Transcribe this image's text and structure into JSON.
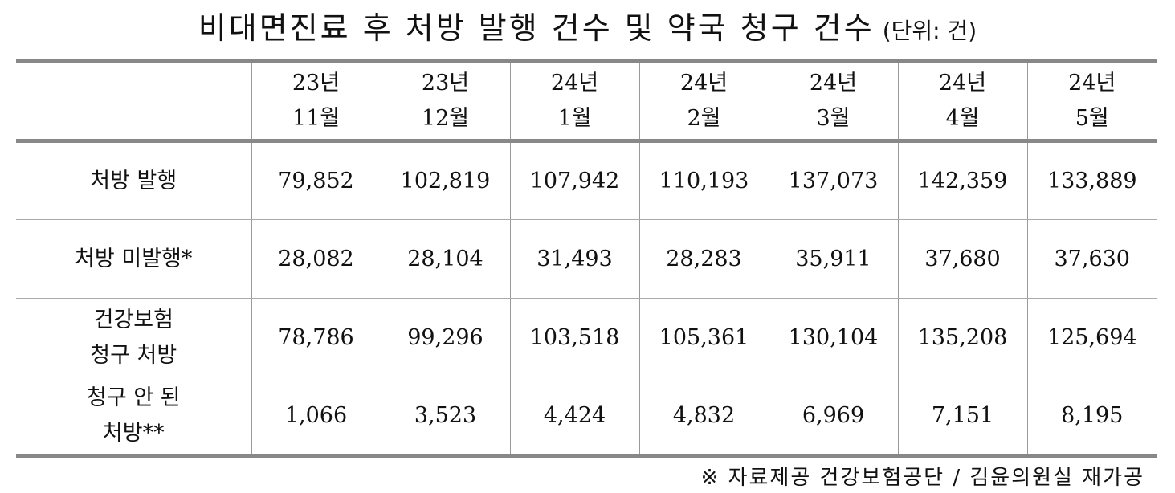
{
  "title": "비대면진료 후 처방 발행 건수 및 약국 청구 건수",
  "unit": "(단위: 건)",
  "table": {
    "header": [
      "",
      "23년\n11월",
      "23년\n12월",
      "24년\n1월",
      "24년\n2월",
      "24년\n3월",
      "24년\n4월",
      "24년\n5월"
    ],
    "rows": [
      [
        "처방 발행",
        "79,852",
        "102,819",
        "107,942",
        "110,193",
        "137,073",
        "142,359",
        "133,889"
      ],
      [
        "처방 미발행*",
        "28,082",
        "28,104",
        "31,493",
        "28,283",
        "35,911",
        "37,680",
        "37,630"
      ],
      [
        "건강보험\n청구 처방",
        "78,786",
        "99,296",
        "103,518",
        "105,361",
        "130,104",
        "135,208",
        "125,694"
      ],
      [
        "청구 안 된\n처방**",
        "1,066",
        "3,523",
        "4,424",
        "4,832",
        "6,969",
        "7,151",
        "8,195"
      ]
    ]
  },
  "footnote": "※ 자료제공 건강보험공단 / 김윤의원실 재가공"
}
